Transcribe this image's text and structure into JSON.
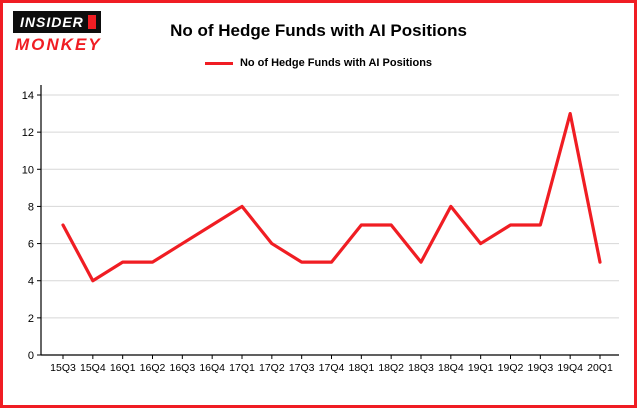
{
  "logo": {
    "line1": "INSIDER",
    "line2": "MONKEY"
  },
  "header": {
    "title": "No of Hedge Funds with AI Positions"
  },
  "legend": {
    "label": "No of Hedge Funds with AI Positions"
  },
  "chart_data": {
    "type": "line",
    "title": "No of Hedge Funds with AI Positions",
    "categories": [
      "15Q3",
      "15Q4",
      "16Q1",
      "16Q2",
      "16Q3",
      "16Q4",
      "17Q1",
      "17Q2",
      "17Q3",
      "17Q4",
      "18Q1",
      "18Q2",
      "18Q3",
      "18Q4",
      "19Q1",
      "19Q2",
      "19Q3",
      "19Q4",
      "20Q1"
    ],
    "values": [
      7,
      4,
      5,
      5,
      6,
      7,
      8,
      6,
      5,
      5,
      7,
      7,
      5,
      8,
      6,
      7,
      7,
      13,
      5
    ],
    "ylim": [
      0,
      14
    ],
    "yticks": [
      0,
      2,
      4,
      6,
      8,
      10,
      12,
      14
    ],
    "xlabel": "",
    "ylabel": "",
    "grid": true,
    "legend_position": "top",
    "line_color": "#f01d23",
    "grid_color": "#d7d7d7",
    "axis_color": "#000000",
    "background": "#ffffff",
    "border_color": "#f01d23"
  }
}
